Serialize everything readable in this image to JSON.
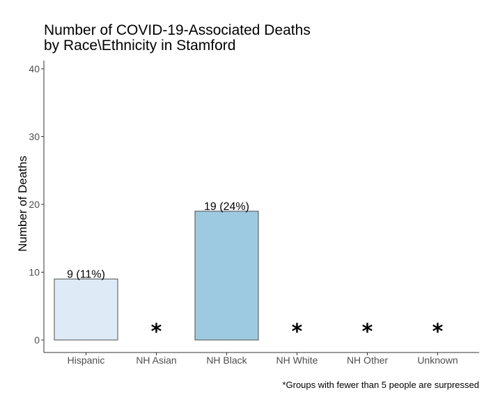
{
  "chart_data": {
    "type": "bar",
    "title_lines": [
      "Number of COVID-19-Associated Deaths",
      "by Race\\Ethnicity in Stamford"
    ],
    "xlabel": "",
    "ylabel": "Number of Deaths",
    "ylim": [
      0,
      40
    ],
    "yticks": [
      0,
      10,
      20,
      30,
      40
    ],
    "ytick_labels": [
      "0",
      "10",
      "20",
      "30",
      "40"
    ],
    "grid": false,
    "categories": [
      "Hispanic",
      "NH Asian",
      "NH Black",
      "NH White",
      "NH Other",
      "Unknown"
    ],
    "bars": [
      {
        "category": "Hispanic",
        "value": 9,
        "label": "9 (11%)",
        "suppressed": false,
        "color": "#deebf7"
      },
      {
        "category": "NH Asian",
        "value": null,
        "label": "*",
        "suppressed": true,
        "color": ""
      },
      {
        "category": "NH Black",
        "value": 19,
        "label": "19 (24%)",
        "suppressed": false,
        "color": "#9ecae1"
      },
      {
        "category": "NH White",
        "value": null,
        "label": "*",
        "suppressed": true,
        "color": ""
      },
      {
        "category": "NH Other",
        "value": null,
        "label": "*",
        "suppressed": true,
        "color": ""
      },
      {
        "category": "Unknown",
        "value": null,
        "label": "*",
        "suppressed": true,
        "color": ""
      }
    ],
    "bar_stroke_color": "#4d4d4d",
    "footnote": "*Groups with fewer than 5 people are surpressed"
  }
}
